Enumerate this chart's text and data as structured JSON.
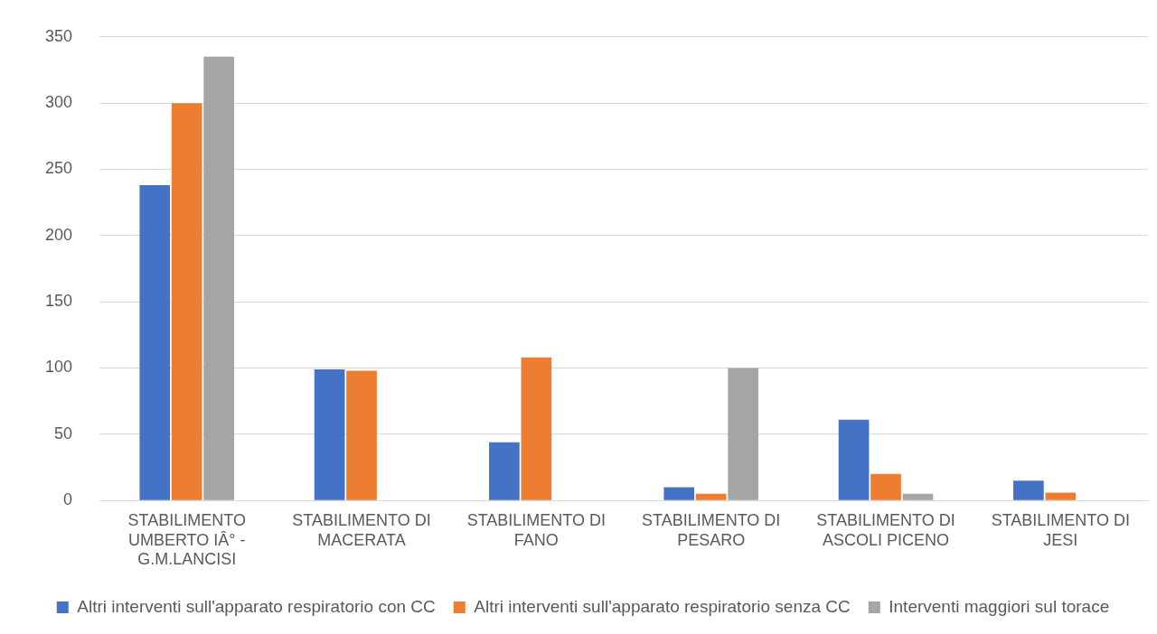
{
  "chart_data": {
    "type": "bar",
    "categories": [
      "STABILIMENTO UMBERTO IÂ° - G.M.LANCISI",
      "STABILIMENTO DI MACERATA",
      "STABILIMENTO DI FANO",
      "STABILIMENTO DI PESARO",
      "STABILIMENTO DI ASCOLI PICENO",
      "STABILIMENTO DI JESI"
    ],
    "series": [
      {
        "name": "Altri interventi sull'apparato respiratorio con CC",
        "color": "#4472c4",
        "values": [
          238,
          99,
          44,
          10,
          61,
          15
        ]
      },
      {
        "name": "Altri interventi sull'apparato respiratorio senza CC",
        "color": "#ed7d31",
        "values": [
          300,
          98,
          108,
          5,
          20,
          6
        ]
      },
      {
        "name": "Interventi maggiori sul torace",
        "color": "#a5a5a5",
        "values": [
          335,
          null,
          null,
          100,
          5,
          null
        ]
      }
    ],
    "ylim": [
      0,
      350
    ],
    "yticks": [
      0,
      50,
      100,
      150,
      200,
      250,
      300,
      350
    ],
    "grid": "y",
    "legend": "bottom"
  }
}
